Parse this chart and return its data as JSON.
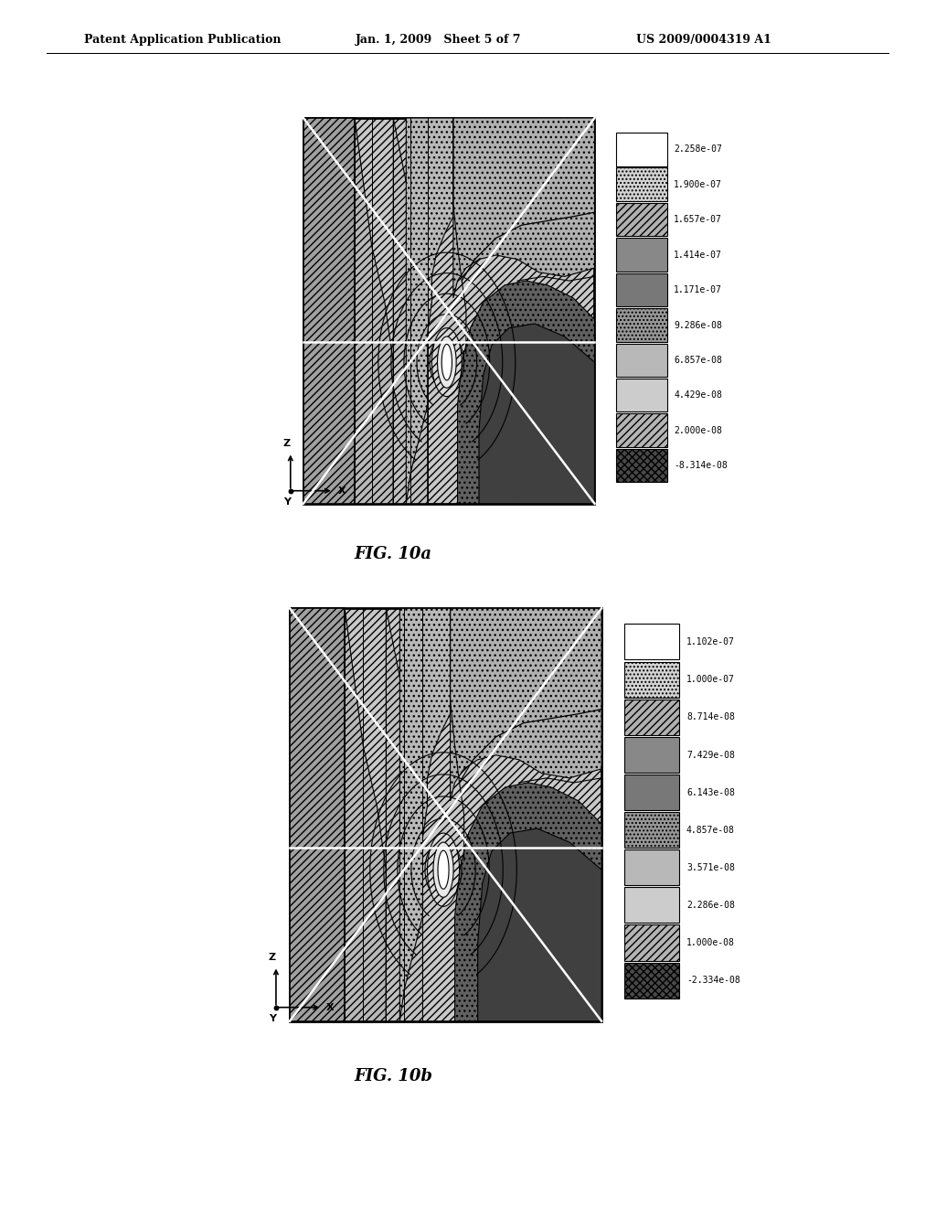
{
  "page_title_left": "Patent Application Publication",
  "page_title_mid": "Jan. 1, 2009   Sheet 5 of 7",
  "page_title_right": "US 2009/0004319 A1",
  "fig1_caption": "FIG. 10a",
  "fig2_caption": "FIG. 10b",
  "fig1_legend_labels": [
    "2.258e-07",
    "1.900e-07",
    "1.657e-07",
    "1.414e-07",
    "1.171e-07",
    "9.286e-08",
    "6.857e-08",
    "4.429e-08",
    "2.000e-08",
    "-8.314e-08"
  ],
  "fig2_legend_labels": [
    "1.102e-07",
    "1.000e-07",
    "8.714e-08",
    "7.429e-08",
    "6.143e-08",
    "4.857e-08",
    "3.571e-08",
    "2.286e-08",
    "1.000e-08",
    "-2.334e-08"
  ],
  "bg_color": "#ffffff"
}
